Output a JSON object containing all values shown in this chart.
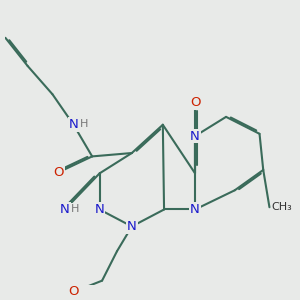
{
  "bg_color": "#e8eae8",
  "bond_color": "#3a6b5a",
  "bond_width": 1.5,
  "atom_colors": {
    "N": "#1a1acc",
    "O": "#cc2200",
    "H": "#777777"
  },
  "font_size": 9.5
}
